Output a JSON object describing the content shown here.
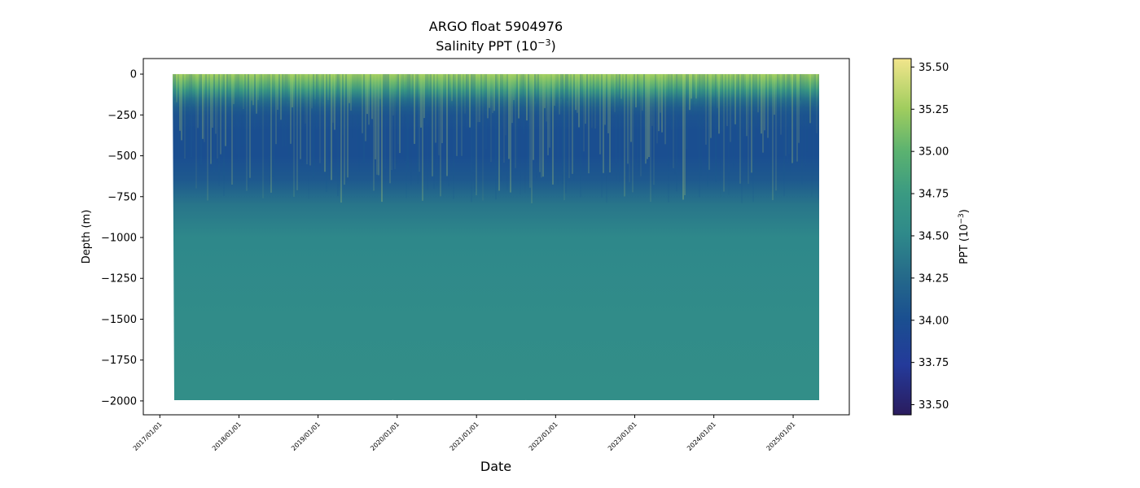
{
  "chart_data": {
    "type": "heatmap",
    "title": "ARGO float 5904976",
    "subtitle_prefix": "Salinity PPT (10",
    "subtitle_exp": "−3",
    "subtitle_suffix": ")",
    "xlabel": "Date",
    "ylabel": "Depth (m)",
    "colorbar_label_prefix": "PPT (10",
    "colorbar_label_exp": "−3",
    "colorbar_label_suffix": ")",
    "colormap": "haline",
    "x_range": [
      "2017-03-01",
      "2025-05-01"
    ],
    "x_ticks": [
      "2017/01/01",
      "2018/01/01",
      "2019/01/01",
      "2020/01/01",
      "2021/01/01",
      "2022/01/01",
      "2023/01/01",
      "2024/01/01",
      "2025/01/01"
    ],
    "y_range": [
      -2085,
      95
    ],
    "y_ticks": [
      0,
      -250,
      -500,
      -750,
      -1000,
      -1250,
      -1500,
      -1750,
      -2000
    ],
    "y_tick_labels": [
      "0",
      "−250",
      "−500",
      "−750",
      "−1000",
      "−1250",
      "−1500",
      "−1750",
      "−2000"
    ],
    "data_depth_range": [
      -2000,
      0
    ],
    "colorbar_range": [
      33.44,
      35.55
    ],
    "colorbar_ticks": [
      35.5,
      35.25,
      35.0,
      34.75,
      34.5,
      34.25,
      34.0,
      33.75,
      33.5
    ],
    "colorbar_tick_labels": [
      "35.50",
      "35.25",
      "35.00",
      "34.75",
      "34.50",
      "34.25",
      "34.00",
      "33.75",
      "33.50"
    ],
    "salinity_profile": {
      "depth": [
        0,
        -50,
        -100,
        -150,
        -200,
        -250,
        -350,
        -500,
        -650,
        -800,
        -1000,
        -1500,
        -2000
      ],
      "salinity": [
        35.25,
        35.05,
        34.75,
        34.35,
        34.15,
        34.05,
        34.0,
        34.0,
        34.1,
        34.35,
        34.5,
        34.55,
        34.57
      ]
    },
    "grid": false,
    "legend": "none"
  }
}
